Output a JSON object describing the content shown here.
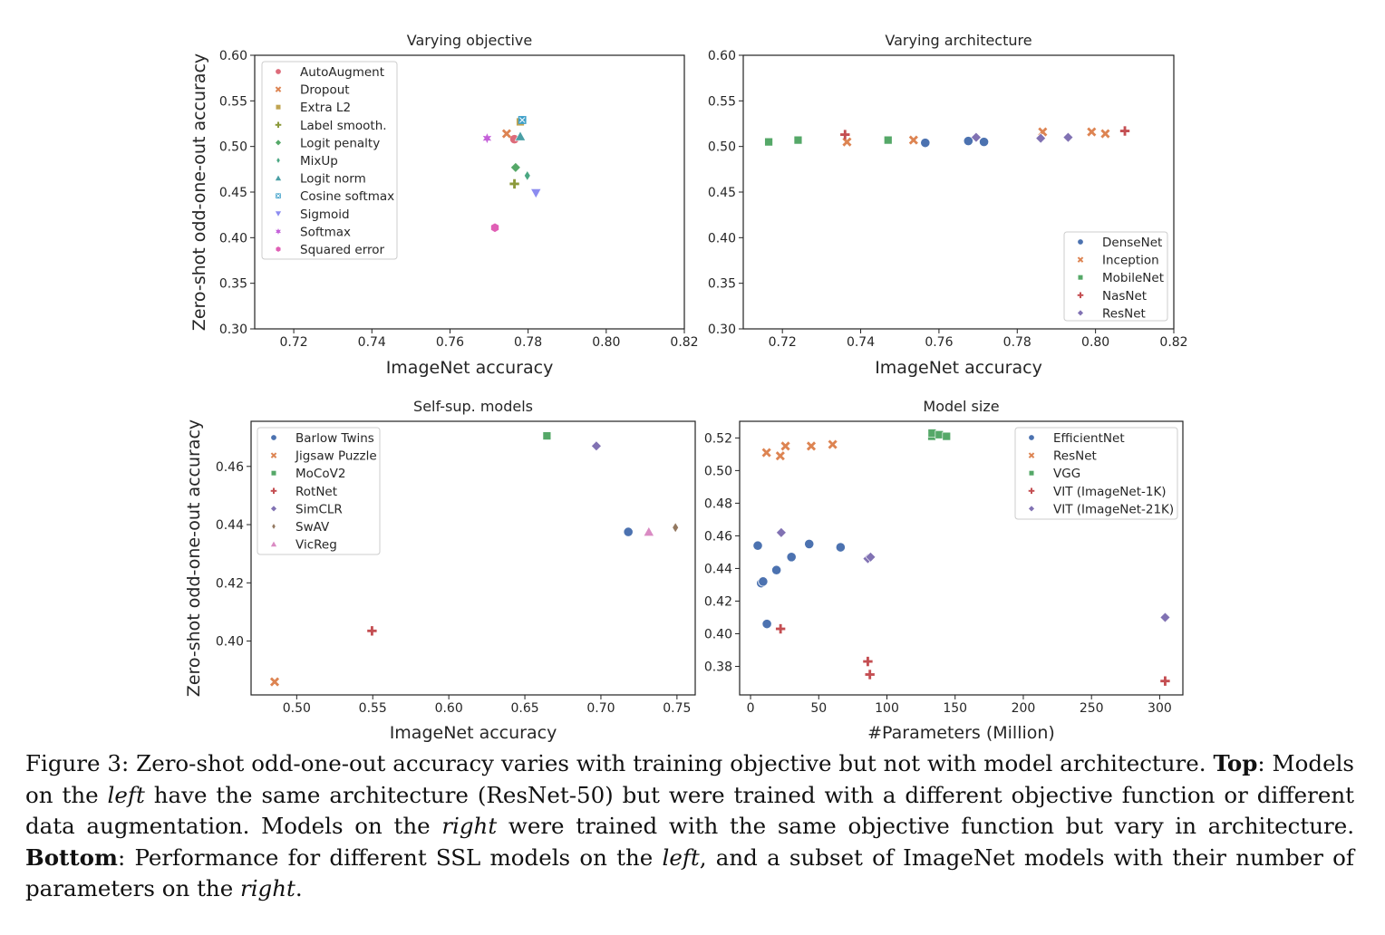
{
  "chart_data": [
    {
      "type": "scatter",
      "title": "Varying objective",
      "xlabel": "ImageNet accuracy",
      "ylabel": "Zero-shot odd-one-out accuracy",
      "xlim": [
        0.71,
        0.82
      ],
      "ylim": [
        0.3,
        0.6
      ],
      "xticks": [
        "0.72",
        "0.74",
        "0.76",
        "0.78",
        "0.80",
        "0.82"
      ],
      "yticks": [
        "0.30",
        "0.35",
        "0.40",
        "0.45",
        "0.50",
        "0.55",
        "0.60"
      ],
      "legend_position": "top-left",
      "series": [
        {
          "name": "AutoAugment",
          "color": "#dd6b7a",
          "marker": "circle",
          "points": [
            [
              0.7765,
              0.508
            ]
          ]
        },
        {
          "name": "Dropout",
          "color": "#dd8452",
          "marker": "x",
          "points": [
            [
              0.7745,
              0.514
            ]
          ]
        },
        {
          "name": "Extra L2",
          "color": "#c0a451",
          "marker": "square",
          "points": [
            [
              0.778,
              0.527
            ]
          ]
        },
        {
          "name": "Label smooth.",
          "color": "#8c9a3c",
          "marker": "plus",
          "points": [
            [
              0.7765,
              0.459
            ]
          ]
        },
        {
          "name": "Logit penalty",
          "color": "#55a868",
          "marker": "diamond",
          "points": [
            [
              0.7768,
              0.477
            ]
          ]
        },
        {
          "name": "MixUp",
          "color": "#4aa782",
          "marker": "thin_diamond",
          "points": [
            [
              0.7798,
              0.468
            ]
          ]
        },
        {
          "name": "Logit norm",
          "color": "#4a9fa5",
          "marker": "triangle_up",
          "points": [
            [
              0.778,
              0.511
            ]
          ]
        },
        {
          "name": "Cosine softmax",
          "color": "#3fa0c9",
          "marker": "x_square",
          "points": [
            [
              0.7785,
              0.529
            ]
          ]
        },
        {
          "name": "Sigmoid",
          "color": "#8c8cf0",
          "marker": "triangle_down",
          "points": [
            [
              0.782,
              0.449
            ]
          ]
        },
        {
          "name": "Softmax",
          "color": "#c45fd9",
          "marker": "star",
          "points": [
            [
              0.7695,
              0.509
            ]
          ]
        },
        {
          "name": "Squared error",
          "color": "#e05fb5",
          "marker": "hexagon",
          "points": [
            [
              0.7715,
              0.411
            ]
          ]
        }
      ]
    },
    {
      "type": "scatter",
      "title": "Varying architecture",
      "xlabel": "ImageNet accuracy",
      "ylabel": "",
      "xlim": [
        0.71,
        0.82
      ],
      "ylim": [
        0.3,
        0.6
      ],
      "xticks": [
        "0.72",
        "0.74",
        "0.76",
        "0.78",
        "0.80",
        "0.82"
      ],
      "yticks": [
        "0.30",
        "0.35",
        "0.40",
        "0.45",
        "0.50",
        "0.55",
        "0.60"
      ],
      "legend_position": "lower-right",
      "series": [
        {
          "name": "DenseNet",
          "color": "#4c72b0",
          "marker": "circle",
          "points": [
            [
              0.7565,
              0.504
            ],
            [
              0.7675,
              0.506
            ],
            [
              0.7715,
              0.505
            ]
          ]
        },
        {
          "name": "Inception",
          "color": "#dd8452",
          "marker": "x",
          "points": [
            [
              0.7365,
              0.505
            ],
            [
              0.7535,
              0.507
            ],
            [
              0.7865,
              0.516
            ],
            [
              0.799,
              0.516
            ],
            [
              0.8025,
              0.514
            ]
          ]
        },
        {
          "name": "MobileNet",
          "color": "#55a868",
          "marker": "square",
          "points": [
            [
              0.7165,
              0.505
            ],
            [
              0.724,
              0.507
            ],
            [
              0.747,
              0.507
            ]
          ]
        },
        {
          "name": "NasNet",
          "color": "#c44e52",
          "marker": "plus",
          "points": [
            [
              0.736,
              0.513
            ],
            [
              0.8075,
              0.517
            ]
          ]
        },
        {
          "name": "ResNet",
          "color": "#8172b3",
          "marker": "diamond",
          "points": [
            [
              0.7695,
              0.51
            ],
            [
              0.786,
              0.509
            ],
            [
              0.793,
              0.51
            ]
          ]
        }
      ]
    },
    {
      "type": "scatter",
      "title": "Self-sup. models",
      "xlabel": "ImageNet accuracy",
      "ylabel": "Zero-shot odd-one-out accuracy",
      "xlim": [
        0.47,
        0.762
      ],
      "ylim": [
        0.3815,
        0.4755
      ],
      "xticks": [
        "0.50",
        "0.55",
        "0.60",
        "0.65",
        "0.70",
        "0.75"
      ],
      "yticks": [
        "0.40",
        "0.42",
        "0.44",
        "0.46"
      ],
      "legend_position": "top-left",
      "series": [
        {
          "name": "Barlow Twins",
          "color": "#4c72b0",
          "marker": "circle",
          "points": [
            [
              0.718,
              0.4375
            ]
          ]
        },
        {
          "name": "Jigsaw Puzzle",
          "color": "#dd8452",
          "marker": "x",
          "points": [
            [
              0.4855,
              0.386
            ]
          ]
        },
        {
          "name": "MoCoV2",
          "color": "#55a868",
          "marker": "square",
          "points": [
            [
              0.6645,
              0.4705
            ]
          ]
        },
        {
          "name": "RotNet",
          "color": "#c44e52",
          "marker": "plus",
          "points": [
            [
              0.5495,
              0.4035
            ]
          ]
        },
        {
          "name": "SimCLR",
          "color": "#8172b3",
          "marker": "diamond",
          "points": [
            [
              0.697,
              0.467
            ]
          ]
        },
        {
          "name": "SwAV",
          "color": "#937860",
          "marker": "thin_diamond",
          "points": [
            [
              0.749,
              0.439
            ]
          ]
        },
        {
          "name": "VicReg",
          "color": "#da8bc3",
          "marker": "triangle_up",
          "points": [
            [
              0.7315,
              0.4375
            ]
          ]
        }
      ]
    },
    {
      "type": "scatter",
      "title": "Model size",
      "xlabel": "#Parameters (Million)",
      "ylabel": "",
      "xlim": [
        -8,
        317
      ],
      "ylim": [
        0.3625,
        0.5302
      ],
      "xticks": [
        "0",
        "50",
        "100",
        "150",
        "200",
        "250",
        "300"
      ],
      "yticks": [
        "0.38",
        "0.40",
        "0.42",
        "0.44",
        "0.46",
        "0.48",
        "0.50",
        "0.52"
      ],
      "legend_position": "top-right",
      "series": [
        {
          "name": "EfficientNet",
          "color": "#4c72b0",
          "marker": "circle",
          "points": [
            [
              5.3,
              0.454
            ],
            [
              7.8,
              0.431
            ],
            [
              9.2,
              0.432
            ],
            [
              12,
              0.406
            ],
            [
              19,
              0.439
            ],
            [
              30,
              0.447
            ],
            [
              43,
              0.455
            ],
            [
              66,
              0.453
            ]
          ]
        },
        {
          "name": "ResNet",
          "color": "#dd8452",
          "marker": "x",
          "points": [
            [
              11.7,
              0.511
            ],
            [
              21.8,
              0.509
            ],
            [
              25.6,
              0.515
            ],
            [
              44.5,
              0.515
            ],
            [
              60.2,
              0.516
            ]
          ]
        },
        {
          "name": "VGG",
          "color": "#55a868",
          "marker": "square",
          "points": [
            [
              132.9,
              0.521
            ],
            [
              133.1,
              0.523
            ],
            [
              138.4,
              0.522
            ],
            [
              143.7,
              0.521
            ]
          ]
        },
        {
          "name": "VIT (ImageNet-1K)",
          "color": "#c44e52",
          "marker": "plus",
          "points": [
            [
              22,
              0.403
            ],
            [
              86,
              0.383
            ],
            [
              87.5,
              0.375
            ],
            [
              304,
              0.371
            ]
          ]
        },
        {
          "name": "VIT (ImageNet-21K)",
          "color": "#8172b3",
          "marker": "diamond",
          "points": [
            [
              22.5,
              0.462
            ],
            [
              86,
              0.446
            ],
            [
              88,
              0.447
            ],
            [
              304,
              0.41
            ]
          ]
        }
      ]
    }
  ],
  "caption": {
    "lead": "Figure 3:  Zero-shot odd-one-out accuracy varies with training objective but not with model architecture.  ",
    "top_label": "Top",
    "p2": ": Models on the ",
    "left1": "left",
    "p3": " have the same architecture (ResNet-50) but were trained with a different objective function or different data augmentation.  Models on the ",
    "right1": "right",
    "p4": " were trained with the same objective function but vary in architecture. ",
    "bottom_label": "Bottom",
    "p5": ": Performance for different SSL models on the ",
    "left2": "left",
    "p6": ", and a subset of ImageNet models with their number of parameters on the ",
    "right2": "right",
    "p7": "."
  }
}
